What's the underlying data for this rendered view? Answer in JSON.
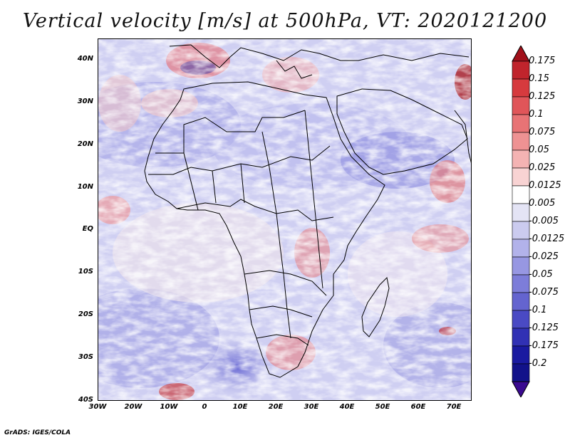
{
  "title": "Vertical velocity [m/s] at 500hPa, VT: 2020121200",
  "footer": "GrADS: IGES/COLA",
  "map": {
    "lat_labels": [
      "40N",
      "30N",
      "20N",
      "10N",
      "EQ",
      "10S",
      "20S",
      "30S",
      "40S"
    ],
    "lon_labels": [
      "30W",
      "20W",
      "10W",
      "0",
      "10E",
      "20E",
      "30E",
      "40E",
      "50E",
      "60E",
      "70E"
    ],
    "lon_range": [
      -30,
      75
    ],
    "lat_range": [
      -40,
      45
    ]
  },
  "colorbar": {
    "labels": [
      "0.175",
      "0.15",
      "0.125",
      "0.1",
      "0.075",
      "0.05",
      "0.025",
      "0.0125",
      "0.005",
      "-0.005",
      "-0.0125",
      "-0.025",
      "-0.05",
      "-0.075",
      "-0.1",
      "-0.125",
      "-0.175",
      "-0.2"
    ],
    "colors": [
      "#a1101a",
      "#c0242c",
      "#d63a3e",
      "#e05559",
      "#e87375",
      "#ee9293",
      "#f4b3b3",
      "#f8d3d3",
      "#ffffff",
      "#e4e4f5",
      "#cbcbef",
      "#b2b2ea",
      "#9797e2",
      "#7d7dd9",
      "#6464cf",
      "#4a4ac4",
      "#3131b4",
      "#1a1aa0",
      "#12128a",
      "#3a0a90"
    ]
  }
}
